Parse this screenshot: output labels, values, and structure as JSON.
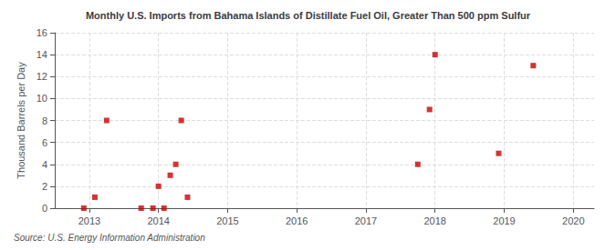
{
  "chart_data": {
    "type": "scatter",
    "title": "Monthly U.S. Imports from Bahama Islands of Distillate Fuel Oil, Greater Than 500 ppm Sulfur",
    "ylabel": "Thousand Barrels per Day",
    "source": "Source: U.S. Energy Information Administration",
    "color": "#cc0000",
    "marker": "square",
    "grid": true,
    "xlim": [
      2012.5,
      2020.3
    ],
    "ylim": [
      0,
      16
    ],
    "xticks": [
      2013,
      2014,
      2015,
      2016,
      2017,
      2018,
      2019,
      2020
    ],
    "yticks": [
      0,
      2,
      4,
      6,
      8,
      10,
      12,
      14,
      16
    ],
    "x": [
      2012.92,
      2013.08,
      2013.25,
      2013.75,
      2013.92,
      2014.0,
      2014.08,
      2014.17,
      2014.25,
      2014.33,
      2014.42,
      2017.75,
      2017.92,
      2018.0,
      2018.92,
      2019.42
    ],
    "values": [
      0,
      1,
      8,
      0,
      0,
      2,
      0,
      3,
      4,
      8,
      1,
      4,
      9,
      14,
      5,
      13
    ]
  }
}
